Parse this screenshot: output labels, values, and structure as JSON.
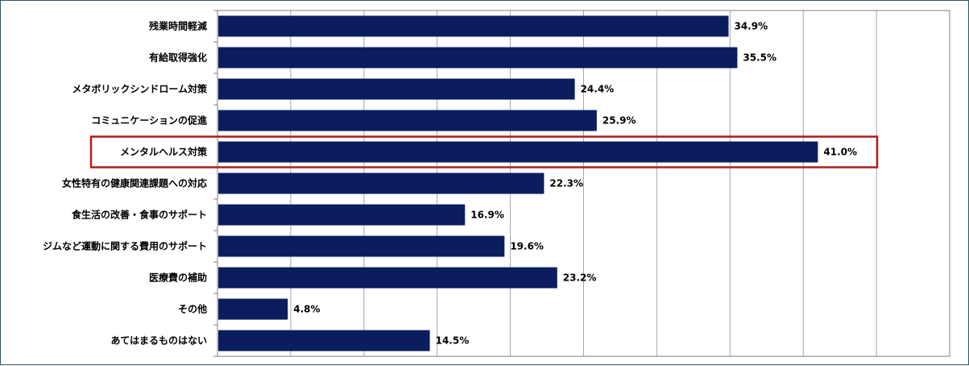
{
  "chart_data": {
    "type": "bar",
    "orientation": "horizontal",
    "categories": [
      "残業時間軽減",
      "有給取得強化",
      "メタボリックシンドローム対策",
      "コミュニケーションの促進",
      "メンタルヘルス対策",
      "女性特有の健康関連課題への対応",
      "食生活の改善・食事のサポート",
      "ジムなど運動に関する費用のサポート",
      "医療費の補助",
      "その他",
      "あてはまるものはない"
    ],
    "values": [
      34.9,
      35.5,
      24.4,
      25.9,
      41.0,
      22.3,
      16.9,
      19.6,
      23.2,
      4.8,
      14.5
    ],
    "value_labels": [
      "34.9%",
      "35.5%",
      "24.4%",
      "25.9%",
      "41.0%",
      "22.3%",
      "16.9%",
      "19.6%",
      "23.2%",
      "4.8%",
      "14.5%"
    ],
    "xlim": [
      0,
      50
    ],
    "grid": true,
    "highlighted_category": "メンタルヘルス対策",
    "colors": {
      "bar": "#0c1d5e",
      "gridline": "#a6a6a6",
      "axis": "#808080",
      "highlight_border": "#b01c1c",
      "frame_border": "#2f5560"
    }
  }
}
